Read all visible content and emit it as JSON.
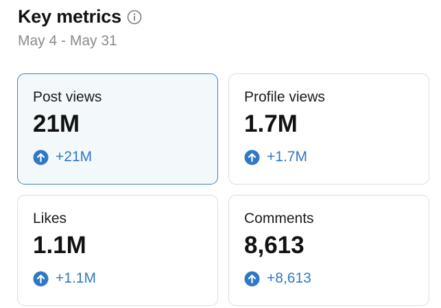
{
  "header": {
    "title": "Key metrics",
    "info_icon": "info-icon",
    "date_range": "May 4 - May 31"
  },
  "colors": {
    "accent": "#2f79c4",
    "selected_border": "#3b82c4",
    "selected_background": "#f3f8fb",
    "muted_text": "#8a8a8a"
  },
  "metrics": [
    {
      "label": "Post views",
      "value": "21M",
      "change": "+21M",
      "change_icon": "arrow-up-circle-icon",
      "selected": true
    },
    {
      "label": "Profile views",
      "value": "1.7M",
      "change": "+1.7M",
      "change_icon": "arrow-up-circle-icon",
      "selected": false
    },
    {
      "label": "Likes",
      "value": "1.1M",
      "change": "+1.1M",
      "change_icon": "arrow-up-circle-icon",
      "selected": false
    },
    {
      "label": "Comments",
      "value": "8,613",
      "change": "+8,613",
      "change_icon": "arrow-up-circle-icon",
      "selected": false
    }
  ]
}
